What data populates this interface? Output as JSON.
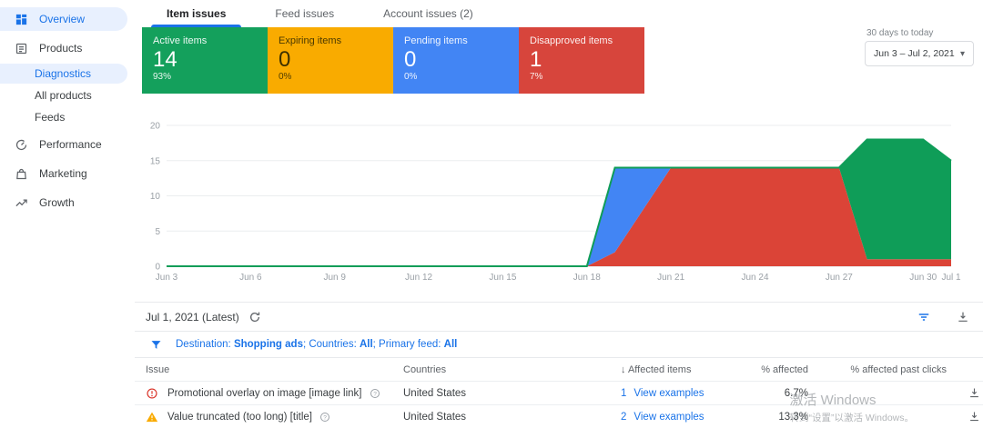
{
  "sidebar": {
    "items": [
      {
        "label": "Overview",
        "icon": "dashboard-icon",
        "active": true,
        "sub": false,
        "gap": false
      },
      {
        "label": "Products",
        "icon": "products-icon",
        "active": false,
        "sub": false,
        "gap": true
      },
      {
        "label": "Diagnostics",
        "icon": null,
        "active": true,
        "sub": true,
        "gap": false
      },
      {
        "label": "All products",
        "icon": null,
        "active": false,
        "sub": true,
        "gap": false
      },
      {
        "label": "Feeds",
        "icon": null,
        "active": false,
        "sub": true,
        "gap": false
      },
      {
        "label": "Performance",
        "icon": "performance-icon",
        "active": false,
        "sub": false,
        "gap": true
      },
      {
        "label": "Marketing",
        "icon": "marketing-icon",
        "active": false,
        "sub": false,
        "gap": true
      },
      {
        "label": "Growth",
        "icon": "growth-icon",
        "active": false,
        "sub": false,
        "gap": true
      }
    ]
  },
  "tabs": [
    {
      "label": "Item issues",
      "active": true
    },
    {
      "label": "Feed issues",
      "active": false
    },
    {
      "label": "Account issues (2)",
      "active": false
    }
  ],
  "summary_cards": [
    {
      "label": "Active items",
      "value": "14",
      "percent": "93%",
      "bg": "#14A05C",
      "fg": "#ffffff"
    },
    {
      "label": "Expiring items",
      "value": "0",
      "percent": "0%",
      "bg": "#F9AB00",
      "fg": "#3c3000"
    },
    {
      "label": "Pending items",
      "value": "0",
      "percent": "0%",
      "bg": "#4285F4",
      "fg": "#ffffff"
    },
    {
      "label": "Disapproved items",
      "value": "1",
      "percent": "7%",
      "bg": "#D7453C",
      "fg": "#ffffff"
    }
  ],
  "date_range": {
    "caption": "30 days to today",
    "value": "Jun 3 – Jul 2, 2021"
  },
  "chart_data": {
    "type": "area",
    "stacked": true,
    "title": "",
    "xlabel": "",
    "ylabel": "",
    "ylim": [
      0,
      20
    ],
    "yticks": [
      0,
      5,
      10,
      15,
      20
    ],
    "grid": true,
    "legend": "none",
    "x": [
      "Jun 3",
      "Jun 4",
      "Jun 5",
      "Jun 6",
      "Jun 7",
      "Jun 8",
      "Jun 9",
      "Jun 10",
      "Jun 11",
      "Jun 12",
      "Jun 13",
      "Jun 14",
      "Jun 15",
      "Jun 16",
      "Jun 17",
      "Jun 18",
      "Jun 19",
      "Jun 20",
      "Jun 21",
      "Jun 22",
      "Jun 23",
      "Jun 24",
      "Jun 25",
      "Jun 26",
      "Jun 27",
      "Jun 28",
      "Jun 29",
      "Jun 30",
      "Jul 1"
    ],
    "x_tick_indices": [
      0,
      3,
      6,
      9,
      12,
      15,
      18,
      21,
      24,
      27,
      28
    ],
    "series": [
      {
        "name": "Disapproved items",
        "color": "#DB4437",
        "values": [
          0,
          0,
          0,
          0,
          0,
          0,
          0,
          0,
          0,
          0,
          0,
          0,
          0,
          0,
          0,
          0,
          2,
          8,
          14,
          14,
          14,
          14,
          14,
          14,
          14,
          1,
          1,
          1,
          1
        ]
      },
      {
        "name": "Pending items",
        "color": "#4285F4",
        "values": [
          0,
          0,
          0,
          0,
          0,
          0,
          0,
          0,
          0,
          0,
          0,
          0,
          0,
          0,
          0,
          0,
          12,
          6,
          0,
          0,
          0,
          0,
          0,
          0,
          0,
          0,
          0,
          0,
          0
        ]
      },
      {
        "name": "Active items",
        "color": "#0F9D58",
        "values": [
          0,
          0,
          0,
          0,
          0,
          0,
          0,
          0,
          0,
          0,
          0,
          0,
          0,
          0,
          0,
          0,
          0,
          0,
          0,
          0,
          0,
          0,
          0,
          0,
          0,
          17,
          17,
          17,
          14
        ]
      }
    ],
    "total_line_color": "#0F9D58"
  },
  "snapshot": {
    "label": "Jul 1, 2021 (Latest)"
  },
  "filter_bar": {
    "segments": [
      {
        "text": "Destination: ",
        "bold": false
      },
      {
        "text": "Shopping ads",
        "bold": true
      },
      {
        "text": "; Countries: ",
        "bold": false
      },
      {
        "text": "All",
        "bold": true
      },
      {
        "text": "; Primary feed: ",
        "bold": false
      },
      {
        "text": "All",
        "bold": true
      }
    ]
  },
  "table": {
    "columns": [
      "Issue",
      "Countries",
      "↓ Affected items",
      "% affected",
      "% affected past clicks"
    ],
    "rows": [
      {
        "severity": "error",
        "issue": "Promotional overlay on image [image link]",
        "countries": "United States",
        "affected_count": "1",
        "affected_link": "View examples",
        "pct_affected": "6.7%",
        "pct_affected_past_clicks": ""
      },
      {
        "severity": "warning",
        "issue": "Value truncated (too long) [title]",
        "countries": "United States",
        "affected_count": "2",
        "affected_link": "View examples",
        "pct_affected": "13.3%",
        "pct_affected_past_clicks": ""
      }
    ]
  },
  "watermark": {
    "line1": "激活 Windows",
    "line2": "转到“设置”以激活 Windows。"
  },
  "colors": {
    "accent": "#1a73e8",
    "active_green": "#0F9D58",
    "pending_blue": "#4285F4",
    "disapproved_red": "#DB4437",
    "expiring_amber": "#F9AB00"
  }
}
